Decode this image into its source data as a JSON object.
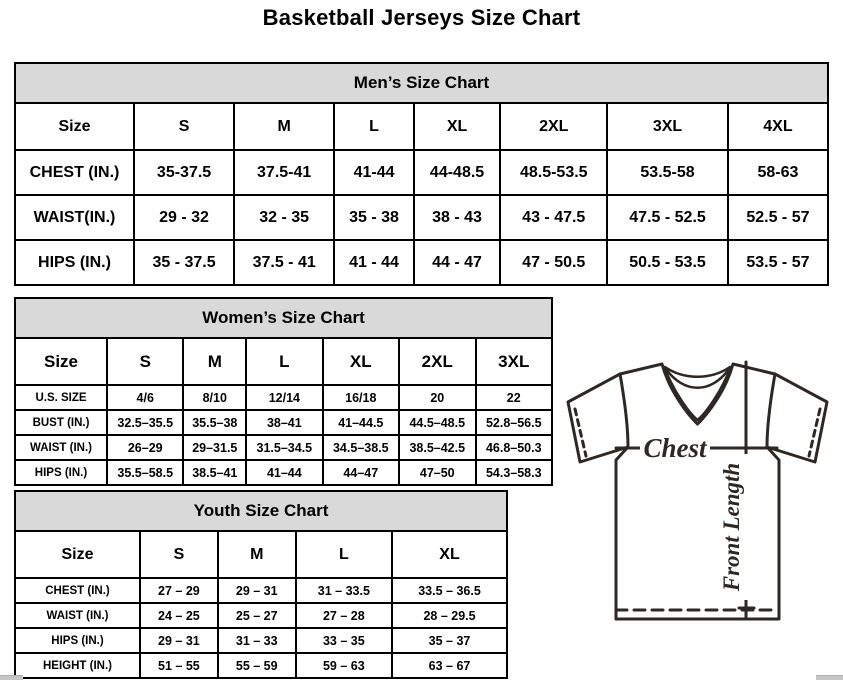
{
  "page_title": "Basketball Jerseys Size Chart",
  "colors": {
    "caption_bg": "#d9d9d9",
    "table_border": "#000000",
    "jersey_stroke": "#2e2723",
    "page_bg": "#ffffff"
  },
  "tables": {
    "mens": {
      "title": "Men’s Size Chart",
      "header": [
        "Size",
        "S",
        "M",
        "L",
        "XL",
        "2XL",
        "3XL",
        "4XL"
      ],
      "rows": [
        [
          "CHEST (IN.)",
          "35-37.5",
          "37.5-41",
          "41-44",
          "44-48.5",
          "48.5-53.5",
          "53.5-58",
          "58-63"
        ],
        [
          "WAIST(IN.)",
          "29 - 32",
          "32 - 35",
          "35 - 38",
          "38 - 43",
          "43 - 47.5",
          "47.5 - 52.5",
          "52.5 - 57"
        ],
        [
          "HIPS (IN.)",
          "35 - 37.5",
          "37.5 - 41",
          "41 - 44",
          "44 - 47",
          "47 - 50.5",
          "50.5 - 53.5",
          "53.5 - 57"
        ]
      ]
    },
    "womens": {
      "title": "Women’s Size Chart",
      "header": [
        "Size",
        "S",
        "M",
        "L",
        "XL",
        "2XL",
        "3XL"
      ],
      "rows": [
        [
          "U.S. SIZE",
          "4/6",
          "8/10",
          "12/14",
          "16/18",
          "20",
          "22"
        ],
        [
          "BUST (IN.)",
          "32.5–35.5",
          "35.5–38",
          "38–41",
          "41–44.5",
          "44.5–48.5",
          "52.8–56.5"
        ],
        [
          "WAIST (IN.)",
          "26–29",
          "29–31.5",
          "31.5–34.5",
          "34.5–38.5",
          "38.5–42.5",
          "46.8–50.3"
        ],
        [
          "HIPS (IN.)",
          "35.5–58.5",
          "38.5–41",
          "41–44",
          "44–47",
          "47–50",
          "54.3–58.3"
        ]
      ]
    },
    "youth": {
      "title": "Youth Size Chart",
      "header": [
        "Size",
        "S",
        "M",
        "L",
        "XL"
      ],
      "rows": [
        [
          "CHEST (IN.)",
          "27 – 29",
          "29 – 31",
          "31 – 33.5",
          "33.5 – 36.5"
        ],
        [
          "WAIST (IN.)",
          "24 – 25",
          "25 – 27",
          "27 – 28",
          "28 – 29.5"
        ],
        [
          "HIPS (IN.)",
          "29 – 31",
          "31 – 33",
          "33 – 35",
          "35 – 37"
        ],
        [
          "HEIGHT (IN.)",
          "51 – 55",
          "55 – 59",
          "59 – 63",
          "63 – 67"
        ]
      ]
    }
  },
  "diagram": {
    "chest_label": "Chest",
    "front_length_label": "Front Length"
  }
}
